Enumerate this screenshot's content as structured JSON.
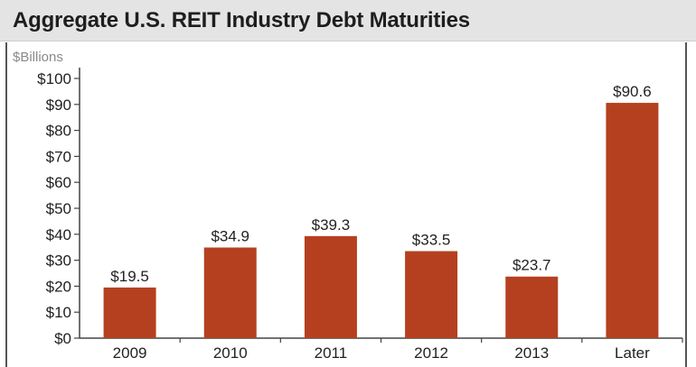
{
  "title": "Aggregate U.S. REIT Industry Debt Maturities",
  "chart_data": {
    "type": "bar",
    "title": "Aggregate U.S. REIT Industry Debt Maturities",
    "ylabel": "$Billions",
    "xlabel": "",
    "categories": [
      "2009",
      "2010",
      "2011",
      "2012",
      "2013",
      "Later"
    ],
    "values": [
      19.5,
      34.9,
      39.3,
      33.5,
      23.7,
      90.6
    ],
    "data_labels": [
      "$19.5",
      "$34.9",
      "$39.3",
      "$33.5",
      "$23.7",
      "$90.6"
    ],
    "ylim": [
      0,
      100
    ],
    "yticks": [
      0,
      10,
      20,
      30,
      40,
      50,
      60,
      70,
      80,
      90,
      100
    ],
    "ytick_labels": [
      "$0",
      "$10",
      "$20",
      "$30",
      "$40",
      "$50",
      "$60",
      "$70",
      "$80",
      "$90",
      "$100"
    ],
    "bar_color": "#b5401f",
    "grid": false,
    "legend": "none"
  }
}
